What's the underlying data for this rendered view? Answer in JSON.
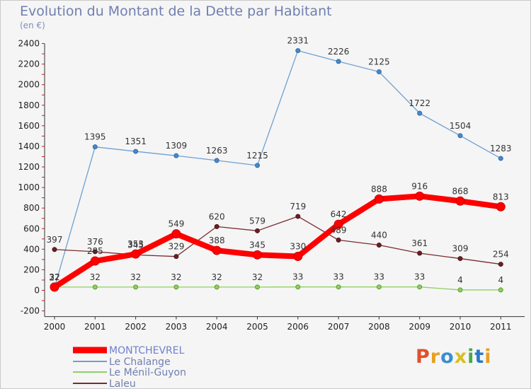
{
  "title": "Evolution du Montant de la Dette par Habitant",
  "unit": "(en €)",
  "logo": {
    "text": "Proxiti",
    "colors": [
      "#e0502a",
      "#e8a020",
      "#3a8fd0",
      "#d8c020",
      "#4aa848",
      "#2a78c8",
      "#e8a020"
    ]
  },
  "chart_data": {
    "type": "line",
    "title": "Evolution du Montant de la Dette par Habitant",
    "subtitle": "(en €)",
    "xlabel": "",
    "ylabel": "",
    "ylim": [
      -200,
      2400
    ],
    "yticks": [
      -200,
      0,
      200,
      400,
      600,
      800,
      1000,
      1200,
      1400,
      1600,
      1800,
      2000,
      2200,
      2400
    ],
    "grid": false,
    "legend": "bottom-left",
    "categories": [
      "2000",
      "2001",
      "2002",
      "2003",
      "2004",
      "2005",
      "2006",
      "2007",
      "2008",
      "2009",
      "2010",
      "2011"
    ],
    "series": [
      {
        "name": "MONTCHEVREL",
        "color": "#ff0000",
        "values": [
          32,
          285,
          353,
          549,
          388,
          345,
          330,
          642,
          888,
          916,
          868,
          813
        ]
      },
      {
        "name": "Le Chalange",
        "color": "#6fa0d0",
        "values": [
          27,
          1395,
          1351,
          1309,
          1263,
          1215,
          2331,
          2226,
          2125,
          1722,
          1504,
          1283
        ]
      },
      {
        "name": "Le Ménil-Guyon",
        "color": "#8fd060",
        "values": [
          32,
          32,
          32,
          32,
          32,
          32,
          33,
          33,
          33,
          33,
          4,
          4
        ]
      },
      {
        "name": "Laleu",
        "color": "#7a2a30",
        "values": [
          397,
          376,
          345,
          329,
          620,
          579,
          719,
          489,
          440,
          361,
          309,
          254
        ]
      }
    ]
  }
}
